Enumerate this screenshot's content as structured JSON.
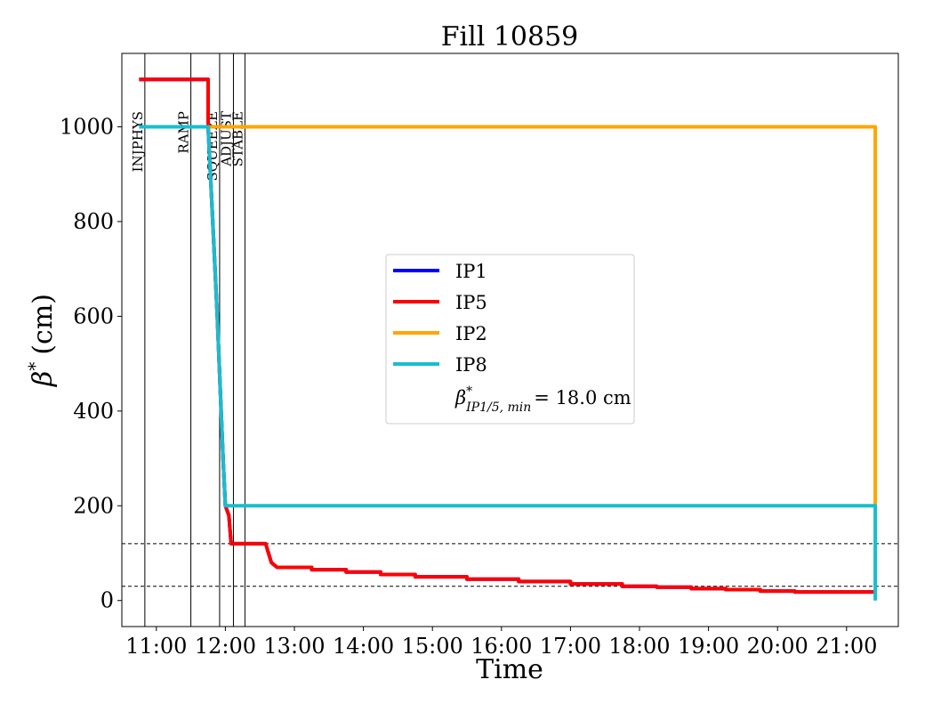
{
  "chart_data": {
    "type": "line",
    "title": "Fill 10859",
    "xlabel": "Time",
    "ylabel": {
      "symbol": "β",
      "sup": "*",
      "unit": "(cm)"
    },
    "xlim": [
      "10:30",
      "21:45"
    ],
    "ylim": [
      -55,
      1155
    ],
    "x_ticks": [
      "11:00",
      "12:00",
      "13:00",
      "14:00",
      "15:00",
      "16:00",
      "17:00",
      "18:00",
      "19:00",
      "20:00",
      "21:00"
    ],
    "y_ticks": [
      0,
      200,
      400,
      600,
      800,
      1000
    ],
    "grid": false,
    "legend_position": "center",
    "phases": [
      {
        "label": "INJPHYS",
        "time": "10:50"
      },
      {
        "label": "RAMP",
        "time": "11:30"
      },
      {
        "label": "SQUEEZE",
        "time": "11:55"
      },
      {
        "label": "ADJUST",
        "time": "12:07"
      },
      {
        "label": "STABLE",
        "time": "12:17"
      }
    ],
    "reference_lines": [
      120,
      30
    ],
    "series": [
      {
        "name": "IP1",
        "color": "#0000ff",
        "points": [
          [
            "10:45",
            1100
          ],
          [
            "11:45",
            1100
          ],
          [
            "11:45",
            1000
          ],
          [
            "11:49",
            800
          ],
          [
            "11:53",
            600
          ],
          [
            "11:56",
            420
          ],
          [
            "11:58",
            300
          ],
          [
            "12:00",
            200
          ],
          [
            "12:03",
            180
          ],
          [
            "12:05",
            120
          ],
          [
            "12:35",
            120
          ],
          [
            "12:40",
            80
          ],
          [
            "12:45",
            70
          ],
          [
            "13:15",
            70
          ],
          [
            "13:15",
            65
          ],
          [
            "13:45",
            65
          ],
          [
            "13:45",
            60
          ],
          [
            "14:15",
            60
          ],
          [
            "14:15",
            55
          ],
          [
            "14:45",
            55
          ],
          [
            "14:45",
            50
          ],
          [
            "15:30",
            50
          ],
          [
            "15:30",
            45
          ],
          [
            "16:15",
            45
          ],
          [
            "16:15",
            40
          ],
          [
            "17:00",
            40
          ],
          [
            "17:00",
            35
          ],
          [
            "17:45",
            35
          ],
          [
            "17:45",
            30
          ],
          [
            "18:15",
            30
          ],
          [
            "18:15",
            28
          ],
          [
            "18:45",
            28
          ],
          [
            "18:45",
            25
          ],
          [
            "19:15",
            25
          ],
          [
            "19:15",
            23
          ],
          [
            "19:45",
            23
          ],
          [
            "19:45",
            20
          ],
          [
            "20:15",
            20
          ],
          [
            "20:15",
            18
          ],
          [
            "21:25",
            18
          ]
        ]
      },
      {
        "name": "IP5",
        "color": "#ff0000",
        "points": [
          [
            "10:45",
            1100
          ],
          [
            "11:45",
            1100
          ],
          [
            "11:45",
            1000
          ],
          [
            "11:49",
            800
          ],
          [
            "11:53",
            600
          ],
          [
            "11:56",
            420
          ],
          [
            "11:58",
            300
          ],
          [
            "12:00",
            200
          ],
          [
            "12:03",
            180
          ],
          [
            "12:05",
            120
          ],
          [
            "12:35",
            120
          ],
          [
            "12:40",
            80
          ],
          [
            "12:45",
            70
          ],
          [
            "13:15",
            70
          ],
          [
            "13:15",
            65
          ],
          [
            "13:45",
            65
          ],
          [
            "13:45",
            60
          ],
          [
            "14:15",
            60
          ],
          [
            "14:15",
            55
          ],
          [
            "14:45",
            55
          ],
          [
            "14:45",
            50
          ],
          [
            "15:30",
            50
          ],
          [
            "15:30",
            45
          ],
          [
            "16:15",
            45
          ],
          [
            "16:15",
            40
          ],
          [
            "17:00",
            40
          ],
          [
            "17:00",
            35
          ],
          [
            "17:45",
            35
          ],
          [
            "17:45",
            30
          ],
          [
            "18:15",
            30
          ],
          [
            "18:15",
            28
          ],
          [
            "18:45",
            28
          ],
          [
            "18:45",
            25
          ],
          [
            "19:15",
            25
          ],
          [
            "19:15",
            23
          ],
          [
            "19:45",
            23
          ],
          [
            "19:45",
            20
          ],
          [
            "20:15",
            20
          ],
          [
            "20:15",
            18
          ],
          [
            "21:25",
            18
          ]
        ]
      },
      {
        "name": "IP2",
        "color": "#ffa500",
        "points": [
          [
            "10:45",
            1000
          ],
          [
            "11:45",
            1000
          ],
          [
            "21:25",
            1000
          ],
          [
            "21:25",
            200
          ]
        ]
      },
      {
        "name": "IP8",
        "color": "#17becf",
        "points": [
          [
            "10:45",
            1000
          ],
          [
            "11:45",
            1000
          ],
          [
            "11:49",
            800
          ],
          [
            "11:53",
            600
          ],
          [
            "11:56",
            420
          ],
          [
            "11:58",
            300
          ],
          [
            "12:00",
            200
          ],
          [
            "21:25",
            200
          ],
          [
            "21:25",
            0
          ]
        ]
      }
    ],
    "annotation": {
      "symbol": "β",
      "sup": "*",
      "sub": "IP1/5, min",
      "value_text": "= 18.0 cm"
    }
  }
}
